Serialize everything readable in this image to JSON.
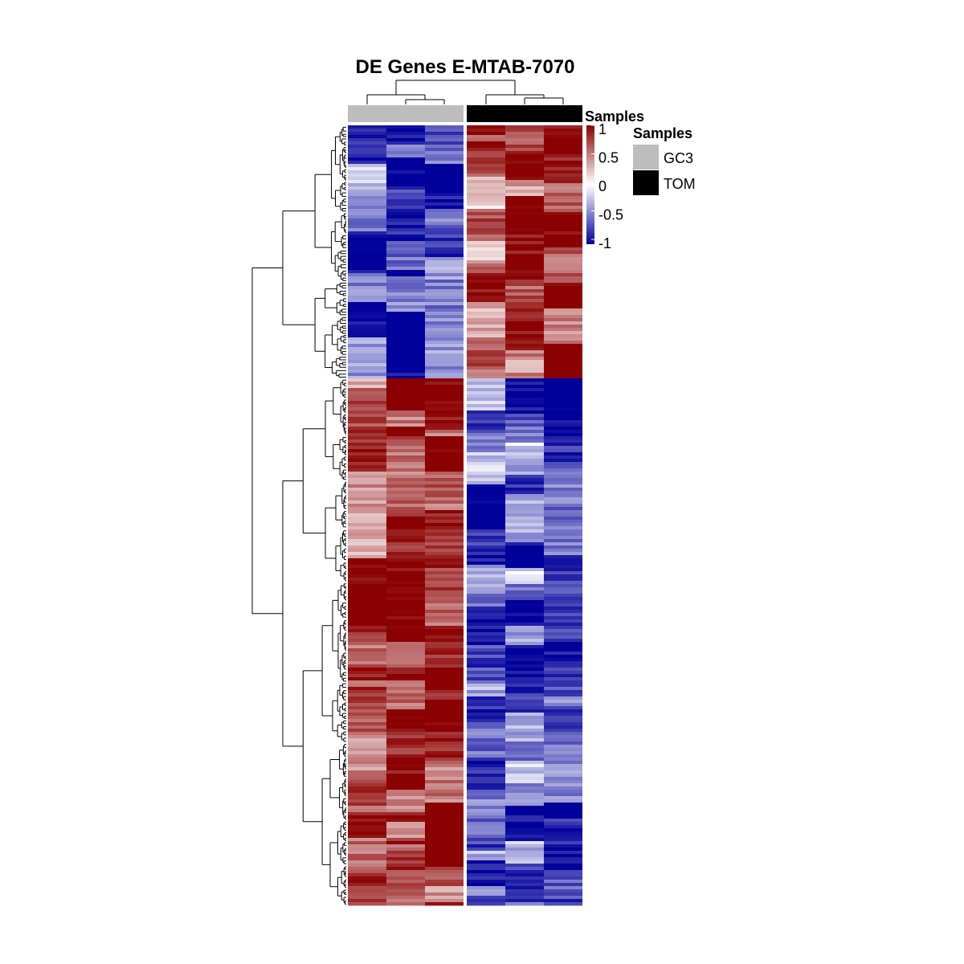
{
  "chart_data": {
    "type": "heatmap",
    "title": "DE Genes E-MTAB-7070",
    "value_range": [
      -1,
      1
    ],
    "colors": {
      "low": "#00009B",
      "mid": "#FFFFFF",
      "high": "#8B0000"
    },
    "column_groups": [
      {
        "name": "GC3",
        "color": "#BDBDBD",
        "columns": 3
      },
      {
        "name": "TOM",
        "color": "#000000",
        "columns": 3
      }
    ],
    "row_clusters": [
      {
        "id": "upregulated-in-TOM",
        "mean_values": [
          -0.6,
          -0.85,
          -0.8,
          0.6,
          0.8,
          0.9
        ]
      },
      {
        "id": "upregulated-in-GC3",
        "mean_values": [
          0.7,
          0.85,
          0.85,
          -0.65,
          -0.6,
          -0.85
        ]
      }
    ],
    "color_legend": {
      "title": "Samples",
      "ticks": [
        "1",
        "0.5",
        "0",
        "-0.5",
        "-1"
      ]
    },
    "annotation_legend": {
      "title": "Samples",
      "items": [
        {
          "label": "GC3",
          "color": "#BDBDBD"
        },
        {
          "label": "TOM",
          "color": "#000000"
        }
      ]
    },
    "dendrograms": {
      "rows": true,
      "columns": true
    },
    "grid": false
  }
}
